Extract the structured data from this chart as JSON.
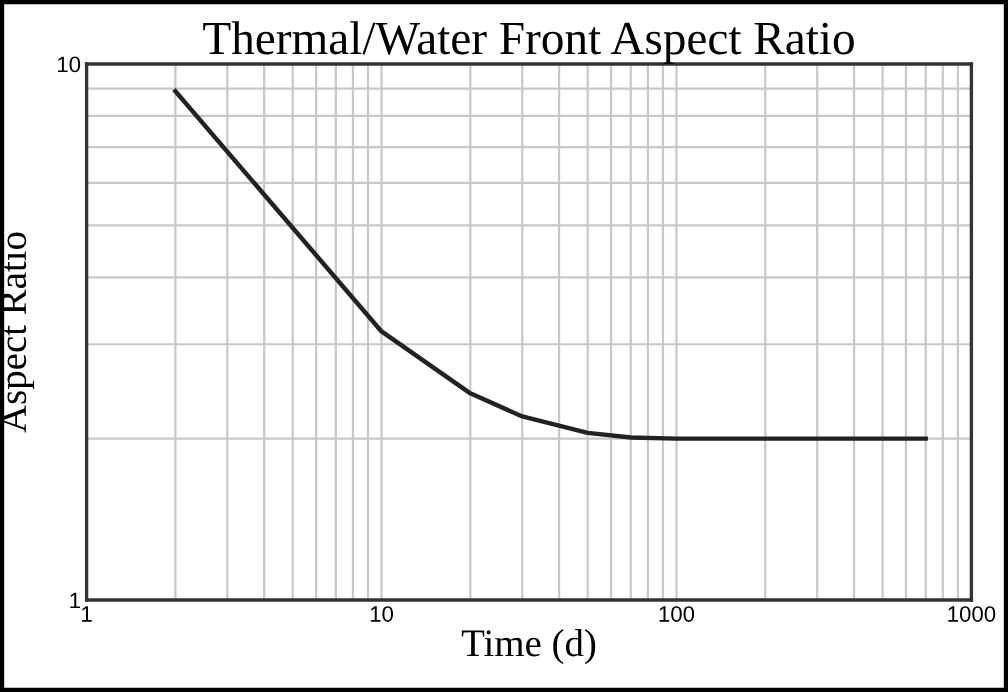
{
  "chart_data": {
    "type": "line",
    "title": "Thermal/Water Front Aspect Ratio",
    "xlabel": "Time (d)",
    "ylabel": "Aspect Ratio",
    "x": [
      2,
      10,
      20,
      30,
      50,
      70,
      100,
      700
    ],
    "series": [
      {
        "color": "#222222",
        "values": [
          8.9,
          3.17,
          2.43,
          2.2,
          2.05,
          2.01,
          2.0,
          2.0
        ]
      }
    ],
    "log": "xy",
    "xlim": [
      1,
      1000
    ],
    "ylim": [
      1,
      10
    ],
    "xticks": [
      1,
      10,
      100,
      1000
    ],
    "yticks": [
      1,
      10
    ],
    "grid": true,
    "legend": false,
    "marker": "none",
    "line_style": "solid"
  }
}
